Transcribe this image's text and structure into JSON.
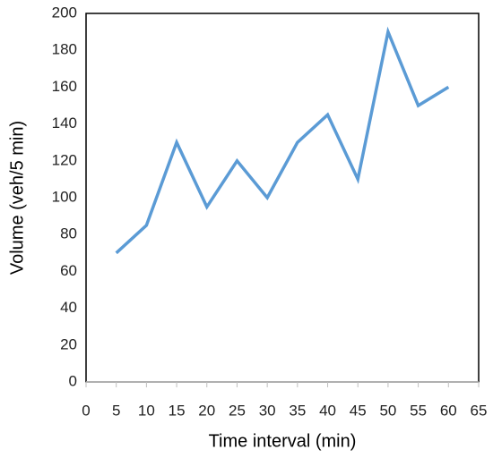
{
  "chart_data": {
    "type": "line",
    "x_label": "Time interval (min)",
    "y_label": "Volume (veh/5 min)",
    "x": [
      5,
      10,
      15,
      20,
      25,
      30,
      35,
      40,
      45,
      50,
      55,
      60
    ],
    "series": [
      {
        "name": "Volume",
        "color": "#5b9bd5",
        "values": [
          70,
          85,
          130,
          95,
          120,
          100,
          130,
          145,
          110,
          190,
          150,
          160
        ]
      }
    ],
    "xlim": [
      0,
      65
    ],
    "xticks": [
      0,
      5,
      10,
      15,
      20,
      25,
      30,
      35,
      40,
      45,
      50,
      55,
      60,
      65
    ],
    "ylim": [
      0,
      200
    ],
    "yticks": [
      0,
      20,
      40,
      60,
      80,
      100,
      120,
      140,
      160,
      180,
      200
    ],
    "grid": false,
    "legend": false
  }
}
